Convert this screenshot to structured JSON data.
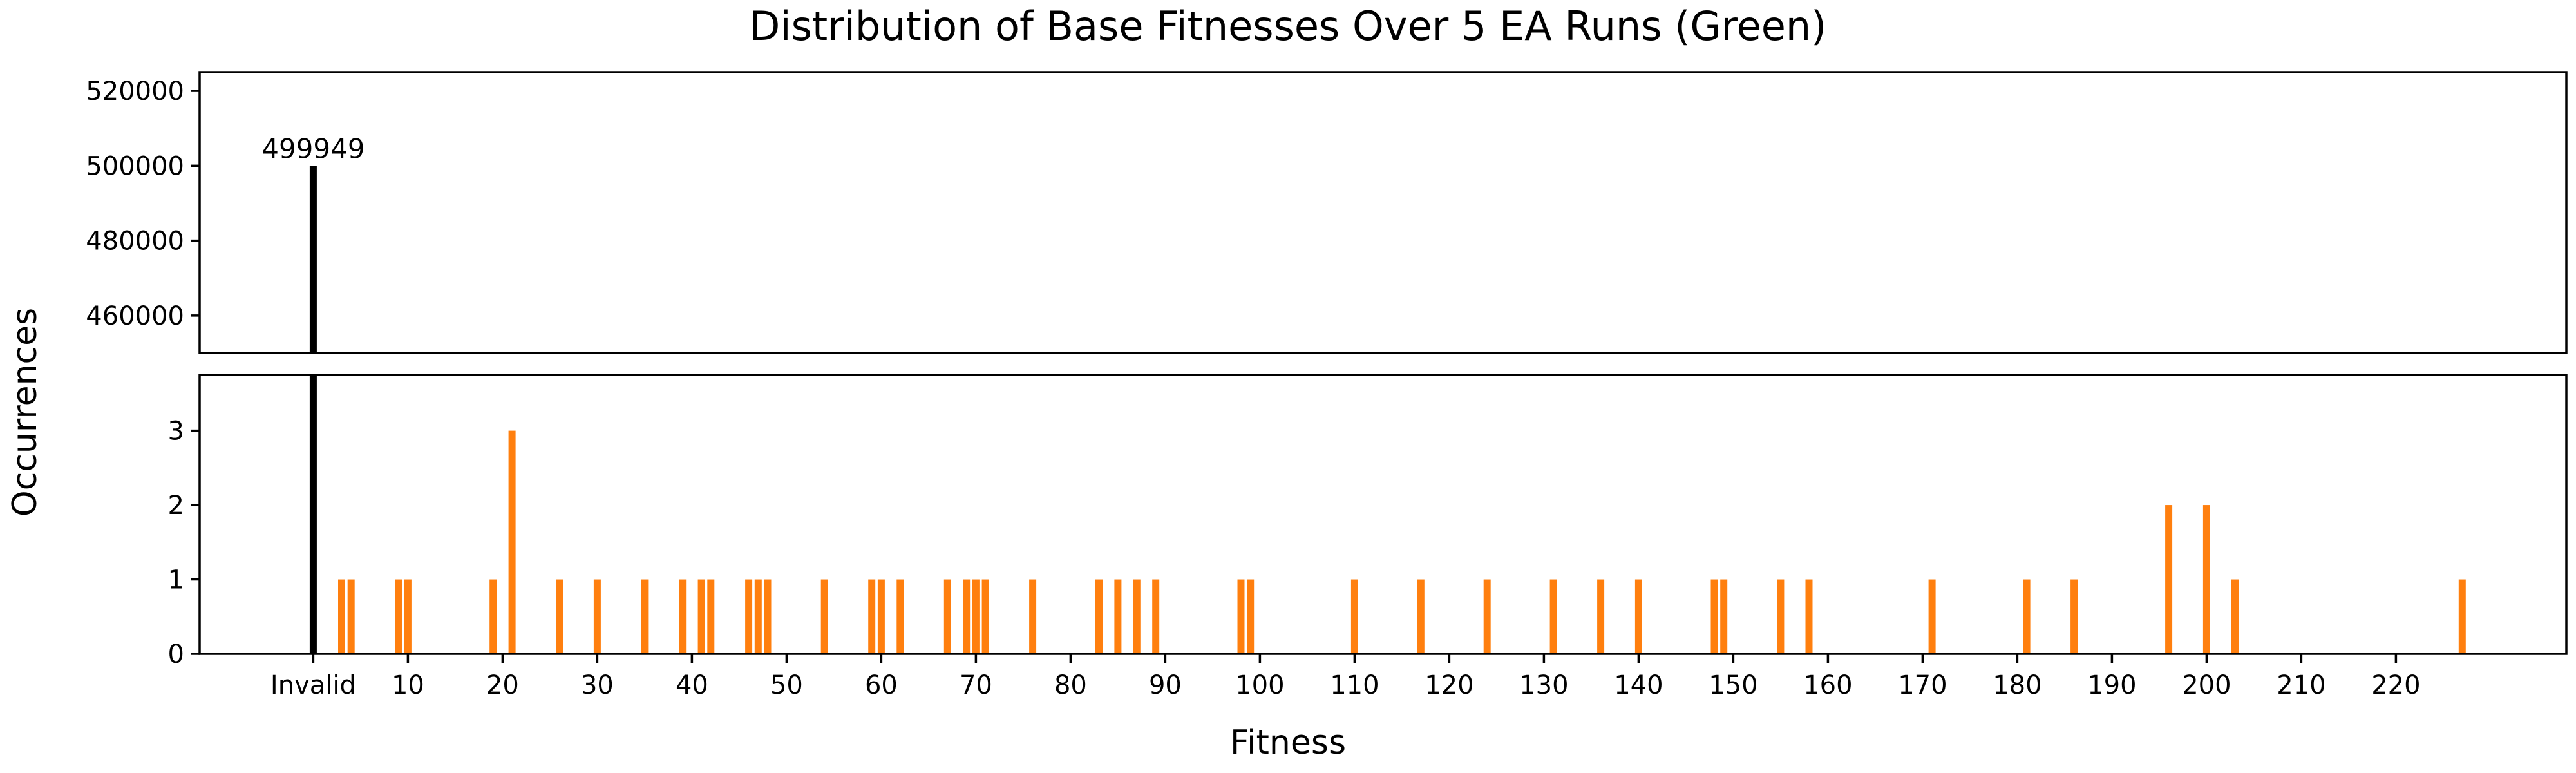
{
  "chart_data": {
    "type": "bar",
    "title": "Distribution of Base Fitnesses Over 5 EA Runs (Green)",
    "xlabel": "Fitness",
    "ylabel": "Occurrences",
    "colors": {
      "invalid": "#000000",
      "valid": "#ff7f0e"
    },
    "broken_y_axis": true,
    "upper_ylim": [
      450000,
      525000
    ],
    "upper_yticks": [
      "460000",
      "480000",
      "500000",
      "520000"
    ],
    "lower_ylim": [
      0,
      3.75
    ],
    "lower_yticks": [
      "0",
      "1",
      "2",
      "3"
    ],
    "xlim": [
      -12,
      238
    ],
    "xtick_labels": [
      "Invalid",
      "10",
      "20",
      "30",
      "40",
      "50",
      "60",
      "70",
      "80",
      "90",
      "100",
      "110",
      "120",
      "130",
      "140",
      "150",
      "160",
      "170",
      "180",
      "190",
      "200",
      "210",
      "220"
    ],
    "series": [
      {
        "category": "Invalid",
        "x": 0,
        "value": 499949
      },
      {
        "x": 3,
        "value": 1
      },
      {
        "x": 4,
        "value": 1
      },
      {
        "x": 9,
        "value": 1
      },
      {
        "x": 10,
        "value": 1
      },
      {
        "x": 19,
        "value": 1
      },
      {
        "x": 21,
        "value": 3
      },
      {
        "x": 26,
        "value": 1
      },
      {
        "x": 30,
        "value": 1
      },
      {
        "x": 35,
        "value": 1
      },
      {
        "x": 39,
        "value": 1
      },
      {
        "x": 41,
        "value": 1
      },
      {
        "x": 42,
        "value": 1
      },
      {
        "x": 46,
        "value": 1
      },
      {
        "x": 47,
        "value": 1
      },
      {
        "x": 48,
        "value": 1
      },
      {
        "x": 54,
        "value": 1
      },
      {
        "x": 59,
        "value": 1
      },
      {
        "x": 60,
        "value": 1
      },
      {
        "x": 62,
        "value": 1
      },
      {
        "x": 67,
        "value": 1
      },
      {
        "x": 69,
        "value": 1
      },
      {
        "x": 70,
        "value": 1
      },
      {
        "x": 71,
        "value": 1
      },
      {
        "x": 76,
        "value": 1
      },
      {
        "x": 83,
        "value": 1
      },
      {
        "x": 85,
        "value": 1
      },
      {
        "x": 87,
        "value": 1
      },
      {
        "x": 89,
        "value": 1
      },
      {
        "x": 98,
        "value": 1
      },
      {
        "x": 99,
        "value": 1
      },
      {
        "x": 110,
        "value": 1
      },
      {
        "x": 117,
        "value": 1
      },
      {
        "x": 124,
        "value": 1
      },
      {
        "x": 131,
        "value": 1
      },
      {
        "x": 136,
        "value": 1
      },
      {
        "x": 140,
        "value": 1
      },
      {
        "x": 148,
        "value": 1
      },
      {
        "x": 149,
        "value": 1
      },
      {
        "x": 155,
        "value": 1
      },
      {
        "x": 158,
        "value": 1
      },
      {
        "x": 171,
        "value": 1
      },
      {
        "x": 181,
        "value": 1
      },
      {
        "x": 186,
        "value": 1
      },
      {
        "x": 196,
        "value": 2
      },
      {
        "x": 200,
        "value": 2
      },
      {
        "x": 203,
        "value": 1
      },
      {
        "x": 227,
        "value": 1
      }
    ],
    "annotations": [
      {
        "x": 0,
        "text": "499949"
      }
    ],
    "legend": "none",
    "grid": false
  }
}
